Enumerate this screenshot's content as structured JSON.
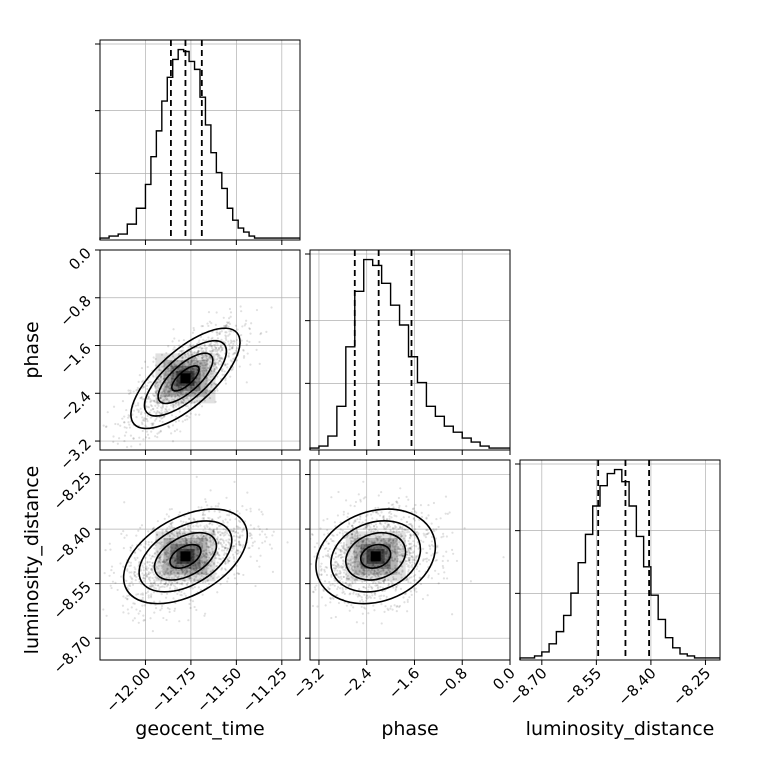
{
  "chart_data": {
    "type": "corner",
    "parameters": [
      "geocent_time",
      "phase",
      "luminosity_distance"
    ],
    "ranges": {
      "geocent_time": [
        -12.25,
        -11.15
      ],
      "phase": [
        -3.35,
        0.0
      ],
      "luminosity_distance": [
        -8.76,
        -8.21
      ]
    },
    "ticks": {
      "geocent_time": [
        "-12.00",
        "-11.75",
        "-11.50",
        "-11.25"
      ],
      "phase": [
        "-3.2",
        "-2.4",
        "-1.6",
        "-0.8",
        "0.0"
      ],
      "luminosity_distance": [
        "-8.70",
        "-8.55",
        "-8.40",
        "-8.25"
      ]
    },
    "tick_values": {
      "geocent_time": [
        -12.0,
        -11.75,
        -11.5,
        -11.25
      ],
      "phase": [
        -3.2,
        -2.4,
        -1.6,
        -0.8,
        0.0
      ],
      "luminosity_distance": [
        -8.7,
        -8.55,
        -8.4,
        -8.25
      ]
    },
    "quantiles": {
      "geocent_time": [
        -11.86,
        -11.78,
        -11.69
      ],
      "phase": [
        -2.6,
        -2.2,
        -1.65
      ],
      "luminosity_distance": [
        -8.545,
        -8.47,
        -8.405
      ]
    },
    "histograms": {
      "geocent_time": {
        "edges": [
          -12.25,
          -12.2,
          -12.15,
          -12.1,
          -12.05,
          -12.0,
          -11.97,
          -11.94,
          -11.91,
          -11.88,
          -11.85,
          -11.82,
          -11.79,
          -11.76,
          -11.73,
          -11.7,
          -11.67,
          -11.64,
          -11.61,
          -11.58,
          -11.55,
          -11.52,
          -11.49,
          -11.46,
          -11.43,
          -11.4,
          -11.37,
          -11.34,
          -11.31,
          -11.28,
          -11.25,
          -11.15
        ],
        "counts": [
          1,
          2,
          3,
          8,
          16,
          28,
          42,
          55,
          70,
          82,
          91,
          96,
          95,
          90,
          86,
          72,
          58,
          44,
          34,
          26,
          16,
          10,
          6,
          4,
          2,
          1,
          1,
          1,
          1,
          1,
          1
        ]
      },
      "phase": {
        "edges": [
          -3.35,
          -3.2,
          -3.05,
          -2.9,
          -2.75,
          -2.6,
          -2.45,
          -2.3,
          -2.15,
          -2.0,
          -1.85,
          -1.7,
          -1.55,
          -1.4,
          -1.25,
          -1.1,
          -0.95,
          -0.8,
          -0.65,
          -0.5,
          -0.35,
          -0.2,
          -0.05,
          0.0
        ],
        "counts": [
          1,
          2,
          7,
          22,
          52,
          80,
          96,
          93,
          84,
          73,
          63,
          47,
          34,
          22,
          17,
          12,
          9,
          6,
          4,
          2,
          1,
          1,
          1
        ]
      },
      "luminosity_distance": {
        "edges": [
          -8.76,
          -8.74,
          -8.72,
          -8.7,
          -8.68,
          -8.66,
          -8.64,
          -8.62,
          -8.6,
          -8.58,
          -8.56,
          -8.54,
          -8.52,
          -8.5,
          -8.48,
          -8.46,
          -8.44,
          -8.42,
          -8.4,
          -8.38,
          -8.36,
          -8.34,
          -8.32,
          -8.3,
          -8.28,
          -8.26,
          -8.24,
          -8.21
        ],
        "counts": [
          1,
          1,
          2,
          4,
          8,
          14,
          22,
          33,
          48,
          62,
          76,
          86,
          92,
          94,
          88,
          76,
          61,
          46,
          32,
          20,
          11,
          6,
          3,
          2,
          1,
          1,
          1
        ]
      }
    },
    "pairs": [
      {
        "x": "geocent_time",
        "y": "phase",
        "center": [
          -11.78,
          -2.15
        ],
        "sigma": [
          0.15,
          0.42
        ],
        "rho": 0.72
      },
      {
        "x": "geocent_time",
        "y": "luminosity_distance",
        "center": [
          -11.78,
          -8.475
        ],
        "sigma": [
          0.17,
          0.065
        ],
        "rho": 0.45
      },
      {
        "x": "phase",
        "y": "luminosity_distance",
        "center": [
          -2.25,
          -8.475
        ],
        "sigma": [
          0.5,
          0.065
        ],
        "rho": 0.2
      }
    ],
    "grid": true
  }
}
